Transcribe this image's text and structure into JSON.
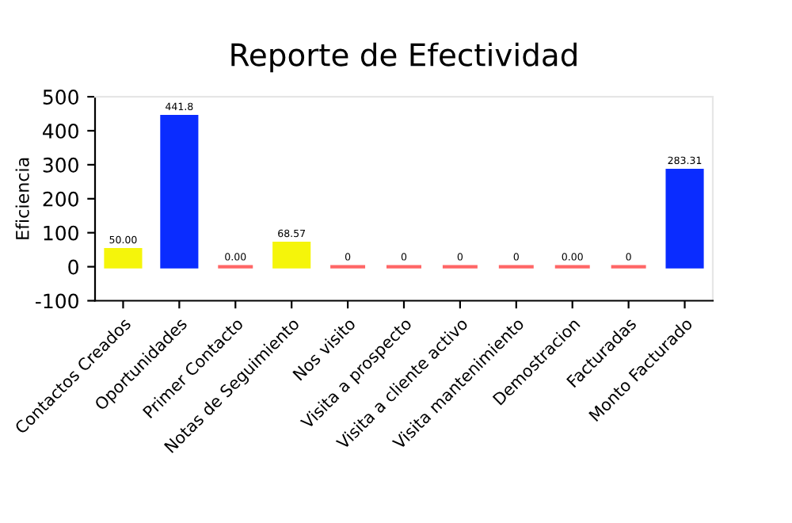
{
  "chart_data": {
    "type": "bar",
    "title": "Reporte de Efectividad",
    "ylabel": "Eficiencia",
    "categories": [
      "Contactos Creados",
      "Oportunidades",
      "Primer Contacto",
      "Notas de Seguimiento",
      "Nos visito",
      "Visita a prospecto",
      "Visita a cliente activo",
      "Visita mantenimiento",
      "Demostracion",
      "Facturadas",
      "Monto Facturado"
    ],
    "values": [
      50.0,
      441.8,
      0.0,
      68.57,
      0,
      0,
      0,
      0,
      0.0,
      0,
      283.31
    ],
    "value_labels": [
      "50.00",
      "441.8",
      "0.00",
      "68.57",
      "0",
      "0",
      "0",
      "0",
      "0.00",
      "0",
      "283.31"
    ],
    "colors": [
      "#f5f50a",
      "#0a2cff",
      "#ff6666",
      "#f5f50a",
      "#ff6666",
      "#ff6666",
      "#ff6666",
      "#ff6666",
      "#ff6666",
      "#ff6666",
      "#0a2cff"
    ],
    "ylim": [
      -100,
      500
    ],
    "yticks": [
      -100,
      0,
      100,
      200,
      300,
      400,
      500
    ],
    "grid": false,
    "legend": false
  }
}
